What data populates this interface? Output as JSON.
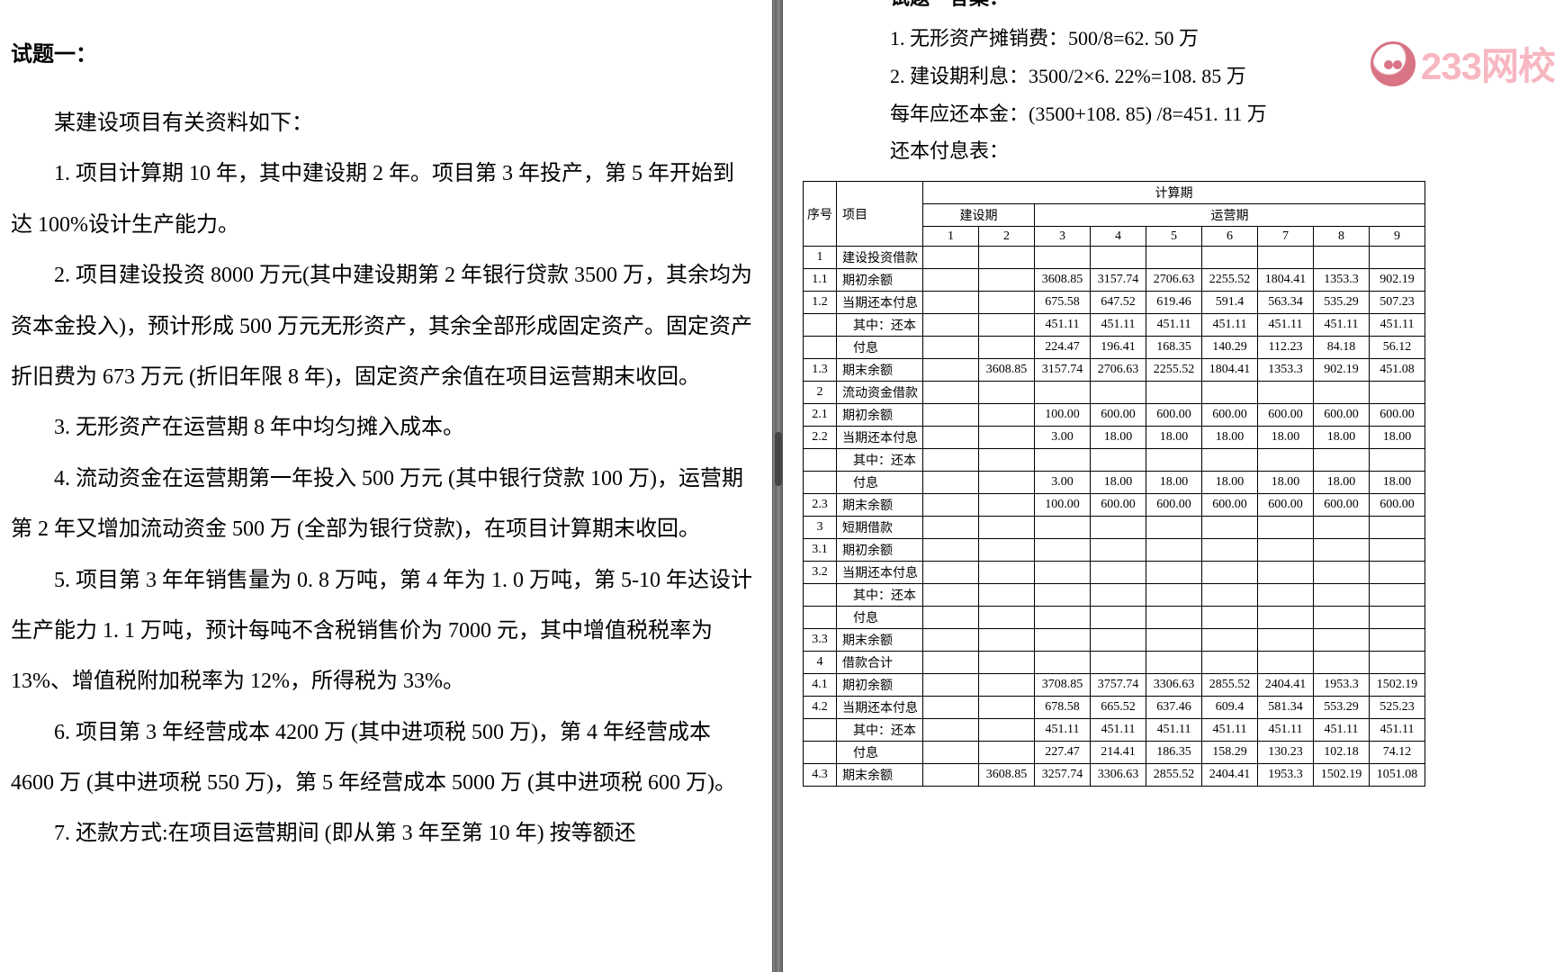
{
  "left": {
    "title": "试题一：",
    "paras": [
      "某建设项目有关资料如下：",
      "1. 项目计算期 10 年，其中建设期 2 年。项目第 3 年投产，第 5 年开始到达 100%设计生产能力。",
      "2. 项目建设投资 8000 万元(其中建设期第 2 年银行贷款 3500 万，其余均为资本金投入)，预计形成 500 万元无形资产，其余全部形成固定资产。固定资产折旧费为 673 万元 (折旧年限 8 年)，固定资产余值在项目运营期末收回。",
      "3. 无形资产在运营期 8 年中均匀摊入成本。",
      "4. 流动资金在运营期第一年投入 500 万元 (其中银行贷款 100 万)，运营期第 2 年又增加流动资金 500 万 (全部为银行贷款)，在项目计算期末收回。",
      "5. 项目第 3 年年销售量为 0. 8 万吨，第 4 年为 1. 0 万吨，第 5-10 年达设计生产能力 1. 1 万吨，预计每吨不含税销售价为 7000 元，其中增值税税率为 13%、增值税附加税率为 12%，所得税为 33%。",
      "6. 项目第 3 年经营成本 4200 万 (其中进项税 500 万)，第 4 年经营成本 4600 万 (其中进项税 550 万)，第 5 年经营成本 5000 万 (其中进项税 600 万)。",
      "7. 还款方式:在项目运营期间 (即从第 3 年至第 10 年) 按等额还"
    ]
  },
  "right": {
    "ans_title": "试题一答案：",
    "ans_lines": [
      "1. 无形资产摊销费：500/8=62. 50 万",
      "2. 建设期利息：3500/2×6. 22%=108. 85 万",
      "每年应还本金：(3500+108. 85) /8=451. 11 万",
      "还本付息表："
    ],
    "watermark": {
      "text": "233网校",
      "color": "#f49aa8"
    },
    "table": {
      "header": {
        "seq": "序号",
        "item": "项目",
        "period": "计算期",
        "build": "建设期",
        "oper": "运营期",
        "cols": [
          "1",
          "2",
          "3",
          "4",
          "5",
          "6",
          "7",
          "8",
          "9"
        ]
      },
      "rows": [
        {
          "idx": "1",
          "name": "建设投资借款",
          "vals": [
            "",
            "",
            "",
            "",
            "",
            "",
            "",
            "",
            ""
          ]
        },
        {
          "idx": "1.1",
          "name": "期初余额",
          "vals": [
            "",
            "",
            "3608.85",
            "3157.74",
            "2706.63",
            "2255.52",
            "1804.41",
            "1353.3",
            "902.19"
          ]
        },
        {
          "idx": "1.2",
          "name": "当期还本付息",
          "vals": [
            "",
            "",
            "675.58",
            "647.52",
            "619.46",
            "591.4",
            "563.34",
            "535.29",
            "507.23"
          ]
        },
        {
          "idx": "",
          "name": "其中：还本",
          "indent": true,
          "vals": [
            "",
            "",
            "451.11",
            "451.11",
            "451.11",
            "451.11",
            "451.11",
            "451.11",
            "451.11"
          ]
        },
        {
          "idx": "",
          "name": "付息",
          "indent": true,
          "vals": [
            "",
            "",
            "224.47",
            "196.41",
            "168.35",
            "140.29",
            "112.23",
            "84.18",
            "56.12"
          ]
        },
        {
          "idx": "1.3",
          "name": "期末余额",
          "vals": [
            "",
            "3608.85",
            "3157.74",
            "2706.63",
            "2255.52",
            "1804.41",
            "1353.3",
            "902.19",
            "451.08"
          ]
        },
        {
          "idx": "2",
          "name": "流动资金借款",
          "vals": [
            "",
            "",
            "",
            "",
            "",
            "",
            "",
            "",
            ""
          ]
        },
        {
          "idx": "2.1",
          "name": "期初余额",
          "vals": [
            "",
            "",
            "100.00",
            "600.00",
            "600.00",
            "600.00",
            "600.00",
            "600.00",
            "600.00"
          ]
        },
        {
          "idx": "2.2",
          "name": "当期还本付息",
          "vals": [
            "",
            "",
            "3.00",
            "18.00",
            "18.00",
            "18.00",
            "18.00",
            "18.00",
            "18.00"
          ]
        },
        {
          "idx": "",
          "name": "其中：还本",
          "indent": true,
          "vals": [
            "",
            "",
            "",
            "",
            "",
            "",
            "",
            "",
            ""
          ]
        },
        {
          "idx": "",
          "name": "付息",
          "indent": true,
          "vals": [
            "",
            "",
            "3.00",
            "18.00",
            "18.00",
            "18.00",
            "18.00",
            "18.00",
            "18.00"
          ]
        },
        {
          "idx": "2.3",
          "name": "期末余额",
          "vals": [
            "",
            "",
            "100.00",
            "600.00",
            "600.00",
            "600.00",
            "600.00",
            "600.00",
            "600.00"
          ]
        },
        {
          "idx": "3",
          "name": "短期借款",
          "vals": [
            "",
            "",
            "",
            "",
            "",
            "",
            "",
            "",
            ""
          ]
        },
        {
          "idx": "3.1",
          "name": "期初余额",
          "vals": [
            "",
            "",
            "",
            "",
            "",
            "",
            "",
            "",
            ""
          ]
        },
        {
          "idx": "3.2",
          "name": "当期还本付息",
          "vals": [
            "",
            "",
            "",
            "",
            "",
            "",
            "",
            "",
            ""
          ]
        },
        {
          "idx": "",
          "name": "其中：还本",
          "indent": true,
          "vals": [
            "",
            "",
            "",
            "",
            "",
            "",
            "",
            "",
            ""
          ]
        },
        {
          "idx": "",
          "name": "付息",
          "indent": true,
          "vals": [
            "",
            "",
            "",
            "",
            "",
            "",
            "",
            "",
            ""
          ]
        },
        {
          "idx": "3.3",
          "name": "期末余额",
          "vals": [
            "",
            "",
            "",
            "",
            "",
            "",
            "",
            "",
            ""
          ]
        },
        {
          "idx": "4",
          "name": "借款合计",
          "vals": [
            "",
            "",
            "",
            "",
            "",
            "",
            "",
            "",
            ""
          ]
        },
        {
          "idx": "4.1",
          "name": "期初余额",
          "vals": [
            "",
            "",
            "3708.85",
            "3757.74",
            "3306.63",
            "2855.52",
            "2404.41",
            "1953.3",
            "1502.19"
          ]
        },
        {
          "idx": "4.2",
          "name": "当期还本付息",
          "vals": [
            "",
            "",
            "678.58",
            "665.52",
            "637.46",
            "609.4",
            "581.34",
            "553.29",
            "525.23"
          ]
        },
        {
          "idx": "",
          "name": "其中：还本",
          "indent": true,
          "vals": [
            "",
            "",
            "451.11",
            "451.11",
            "451.11",
            "451.11",
            "451.11",
            "451.11",
            "451.11"
          ]
        },
        {
          "idx": "",
          "name": "付息",
          "indent": true,
          "vals": [
            "",
            "",
            "227.47",
            "214.41",
            "186.35",
            "158.29",
            "130.23",
            "102.18",
            "74.12"
          ]
        },
        {
          "idx": "4.3",
          "name": "期末余额",
          "vals": [
            "",
            "3608.85",
            "3257.74",
            "3306.63",
            "2855.52",
            "2404.41",
            "1953.3",
            "1502.19",
            "1051.08"
          ]
        }
      ]
    }
  }
}
